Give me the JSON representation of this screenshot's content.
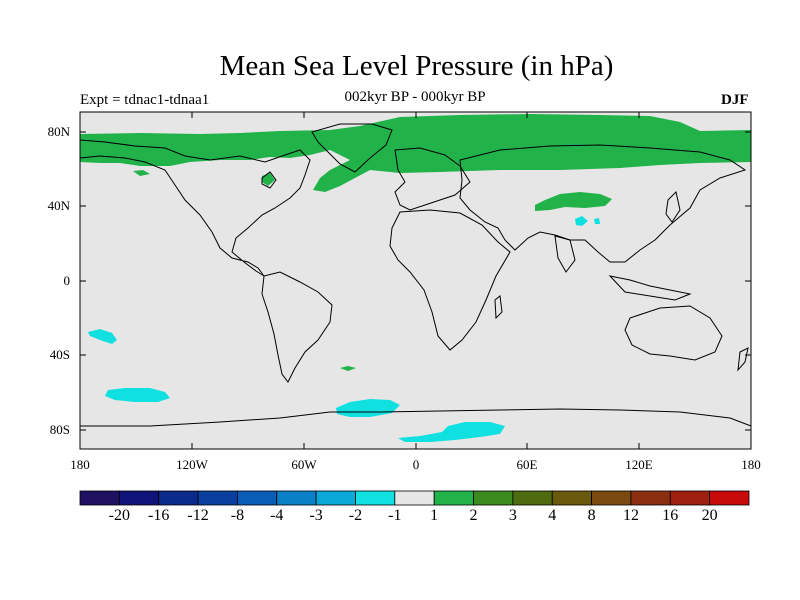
{
  "title": "Mean Sea Level Pressure (in hPa)",
  "experiment": "Expt = tdnac1-tdnaa1",
  "period": "002kyr BP - 000kyr BP",
  "season": "DJF",
  "y_axis_labels": [
    "80N",
    "40N",
    "0",
    "40S",
    "80S"
  ],
  "x_axis_labels": [
    "180",
    "120W",
    "60W",
    "0",
    "60E",
    "120E",
    "180"
  ],
  "colorbar": {
    "colors": [
      "#1f1060",
      "#10147a",
      "#0a2a8c",
      "#0a3fa0",
      "#0a5cb4",
      "#0a80c8",
      "#0aa8d8",
      "#10e0e0",
      "#e6e6e6",
      "#22b24a",
      "#3a8a1e",
      "#4e6b10",
      "#6a5a10",
      "#7a4a10",
      "#8a3010",
      "#a02010",
      "#c80a0a"
    ],
    "labels": [
      "-20",
      "-16",
      "-12",
      "-8",
      "-4",
      "-3",
      "-2",
      "-1",
      "1",
      "2",
      "3",
      "4",
      "8",
      "12",
      "16",
      "20"
    ]
  },
  "chart_data": {
    "type": "heatmap",
    "title": "Mean Sea Level Pressure (in hPa)",
    "variable": "Mean Sea Level Pressure anomaly",
    "units": "hPa",
    "xlim": [
      -180,
      180
    ],
    "ylim": [
      -90,
      90
    ],
    "x_ticks": [
      -180,
      -120,
      -60,
      0,
      60,
      120,
      180
    ],
    "y_ticks": [
      80,
      40,
      0,
      -40,
      -80
    ],
    "background_class": "-1 to 1",
    "positive_regions": [
      {
        "name": "Arctic / high northern latitudes",
        "range": "1 to 2"
      },
      {
        "name": "North Pacific margin",
        "range": "1 to 2"
      },
      {
        "name": "Central Asia",
        "range": "1 to 2"
      },
      {
        "name": "South Atlantic small patch",
        "range": "1 to 2"
      }
    ],
    "negative_regions": [
      {
        "name": "South Pacific subtropics",
        "range": "-2 to -1"
      },
      {
        "name": "South Pacific high latitudes",
        "range": "-2 to -1"
      },
      {
        "name": "South Atlantic high latitudes",
        "range": "-2 to -1"
      },
      {
        "name": "Antarctic coast near 0-60E",
        "range": "-2 to -1"
      },
      {
        "name": "Tibet region",
        "range": "-2 to -1"
      }
    ]
  }
}
